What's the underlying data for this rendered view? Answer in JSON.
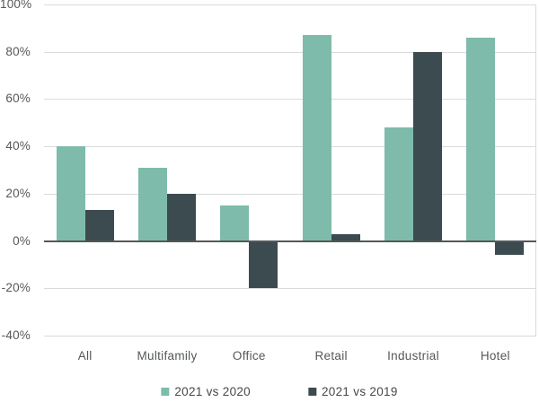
{
  "chart_data": {
    "type": "bar",
    "title": "",
    "xlabel": "",
    "ylabel": "",
    "categories": [
      "All",
      "Multifamily",
      "Office",
      "Retail",
      "Industrial",
      "Hotel"
    ],
    "series": [
      {
        "name": "2021 vs 2020",
        "color": "#7EBBAA",
        "values": [
          40,
          31,
          15,
          87,
          48,
          86
        ]
      },
      {
        "name": "2021 vs 2019",
        "color": "#3C4B50",
        "values": [
          13,
          20,
          -20,
          3,
          80,
          -6
        ]
      }
    ],
    "ylim": [
      -40,
      100
    ],
    "ytick_step": 20,
    "ytick_suffix": "%",
    "ytick_labels": [
      "100%",
      "80%",
      "60%",
      "40%",
      "20%",
      "0%",
      "-20%",
      "-40%"
    ],
    "grid": true,
    "legend_position": "bottom"
  },
  "colors": {
    "background": "#FFFFFF",
    "gridline": "#D8DADC",
    "zero_line": "#54575A",
    "right_border": "#D8DADC",
    "tick_text": "#54575A",
    "legend_text": "#45484B"
  }
}
